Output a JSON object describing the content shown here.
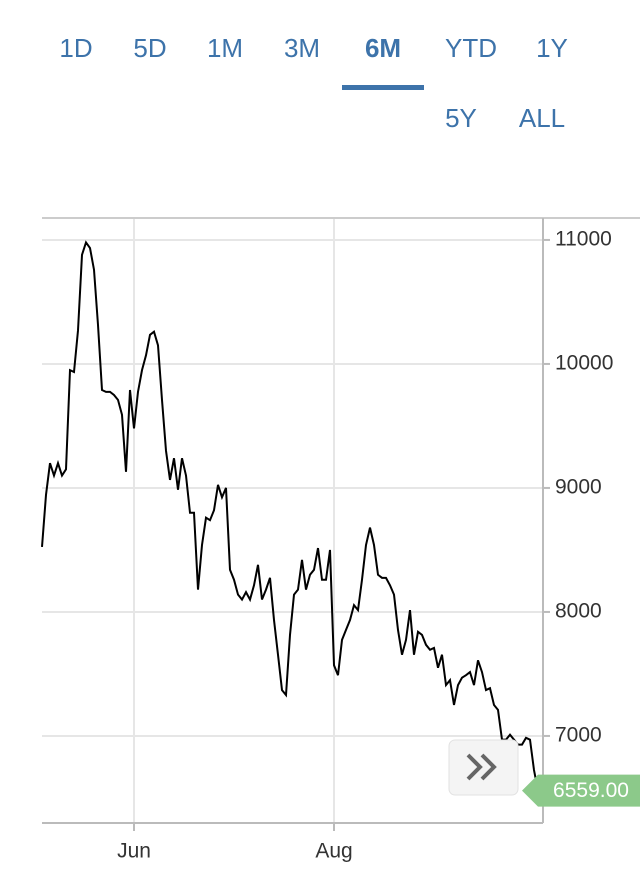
{
  "tabs": [
    {
      "label": "1D",
      "selected": false
    },
    {
      "label": "5D",
      "selected": false
    },
    {
      "label": "1M",
      "selected": false
    },
    {
      "label": "3M",
      "selected": false
    },
    {
      "label": "6M",
      "selected": true
    },
    {
      "label": "YTD",
      "selected": false
    },
    {
      "label": "1Y",
      "selected": false
    },
    {
      "label": "5Y",
      "selected": false
    },
    {
      "label": "ALL",
      "selected": false
    }
  ],
  "chart_data": {
    "type": "line",
    "color": "#000000",
    "grid": true,
    "categories": [
      null,
      null,
      null,
      null,
      null,
      null,
      null,
      null,
      null,
      null,
      null,
      null,
      null,
      null,
      null,
      null,
      null,
      null,
      null,
      null,
      null,
      null,
      null,
      "Jun",
      null,
      null,
      null,
      null,
      null,
      null,
      null,
      null,
      null,
      null,
      null,
      null,
      null,
      null,
      null,
      null,
      null,
      null,
      null,
      null,
      null,
      null,
      null,
      null,
      null,
      null,
      null,
      null,
      null,
      null,
      null,
      null,
      null,
      null,
      null,
      null,
      null,
      null,
      null,
      null,
      null,
      null,
      null,
      null,
      null,
      null,
      null,
      null,
      null,
      "Aug",
      null,
      null,
      null,
      null,
      null,
      null,
      null,
      null,
      null,
      null,
      null,
      null,
      null,
      null,
      null,
      null,
      null,
      null,
      null,
      null,
      null,
      null,
      null,
      null,
      null,
      null,
      null,
      null,
      null,
      null,
      null,
      null,
      null,
      null,
      null,
      null,
      null,
      null,
      null,
      null,
      null,
      null,
      null,
      null,
      null,
      null,
      null,
      null,
      null,
      null,
      null
    ],
    "values": [
      8524,
      8944,
      9200,
      9100,
      9200,
      9100,
      9150,
      9950,
      9935,
      10270,
      10880,
      10980,
      10935,
      10760,
      10315,
      9790,
      9775,
      9775,
      9750,
      9710,
      9590,
      9130,
      9790,
      9480,
      9775,
      9950,
      10070,
      10235,
      10260,
      10150,
      9710,
      9300,
      9065,
      9240,
      8985,
      9240,
      9100,
      8800,
      8800,
      8180,
      8540,
      8760,
      8740,
      8820,
      9025,
      8925,
      9000,
      8340,
      8260,
      8140,
      8100,
      8160,
      8100,
      8215,
      8380,
      8100,
      8180,
      8275,
      7935,
      7655,
      7370,
      7330,
      7815,
      8140,
      8180,
      8420,
      8180,
      8300,
      8340,
      8515,
      8260,
      8260,
      8500,
      7570,
      7490,
      7775,
      7855,
      7935,
      8055,
      8015,
      8260,
      8540,
      8680,
      8540,
      8300,
      8275,
      8275,
      8215,
      8140,
      7855,
      7655,
      7775,
      8015,
      7655,
      7840,
      7815,
      7735,
      7695,
      7710,
      7550,
      7655,
      7410,
      7450,
      7250,
      7410,
      7470,
      7490,
      7515,
      7410,
      7610,
      7515,
      7370,
      7385,
      7250,
      7210,
      6970,
      6970,
      7010,
      6970,
      6930,
      6930,
      6985,
      6970,
      6725,
      6559
    ],
    "ylim": [
      6298,
      11177
    ],
    "yticks": [
      7000,
      8000,
      9000,
      10000,
      11000
    ],
    "price_tag": {
      "value": 6559,
      "label": "6559.00"
    }
  }
}
